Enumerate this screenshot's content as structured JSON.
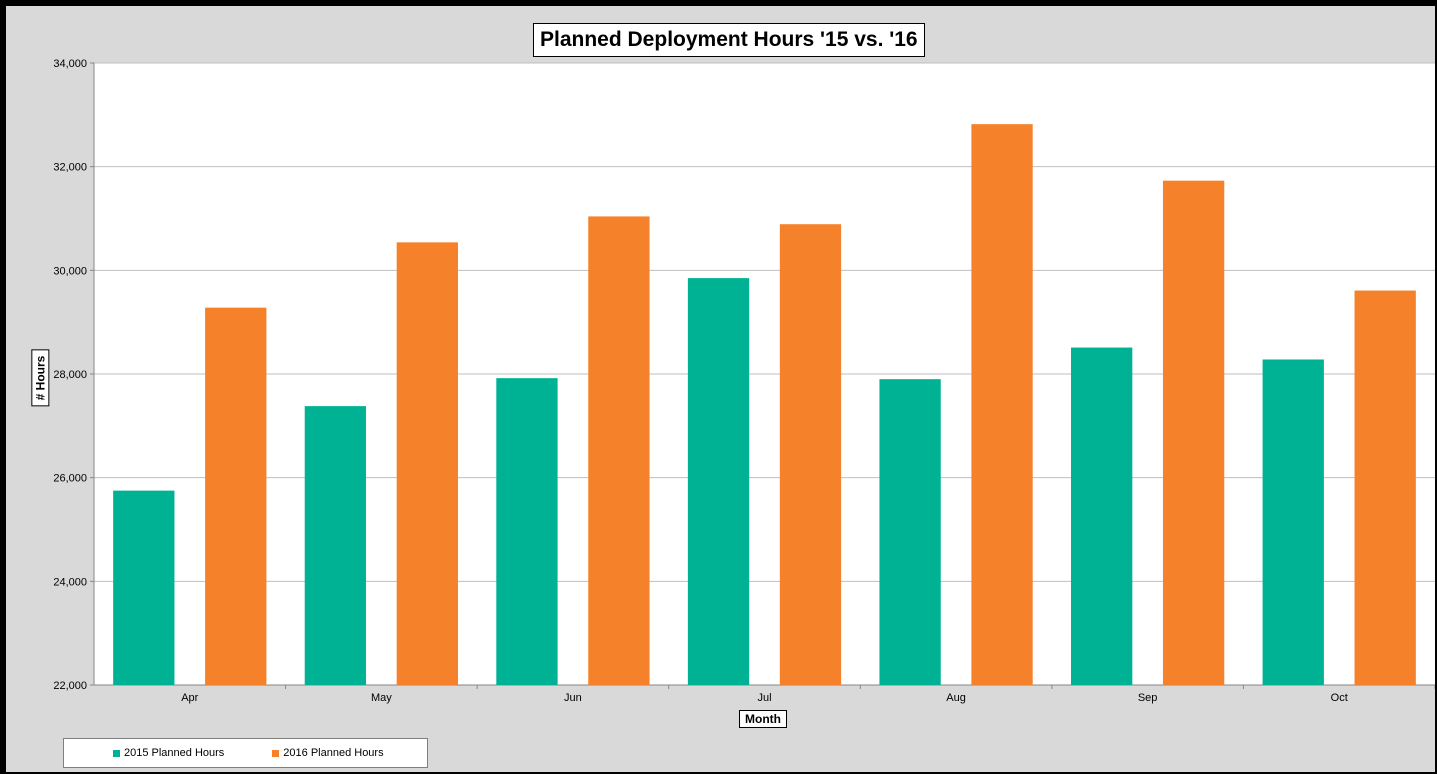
{
  "chart_data": {
    "type": "bar",
    "title": "Planned Deployment Hours '15 vs. '16",
    "xlabel": "Month",
    "ylabel": "# Hours",
    "categories": [
      "Apr",
      "May",
      "Jun",
      "Jul",
      "Aug",
      "Sep",
      "Oct"
    ],
    "series": [
      {
        "name": "2015 Planned Hours",
        "color": "#00b294",
        "values": [
          25750,
          27380,
          27920,
          29850,
          27900,
          28510,
          28280
        ]
      },
      {
        "name": "2016 Planned Hours",
        "color": "#f5822a",
        "values": [
          29280,
          30540,
          31040,
          30890,
          32820,
          31730,
          29610
        ]
      }
    ],
    "ylim": [
      22000,
      34000
    ],
    "yticks": [
      22000,
      24000,
      26000,
      28000,
      30000,
      32000,
      34000
    ],
    "ytick_labels": [
      "22,000",
      "24,000",
      "26,000",
      "28,000",
      "30,000",
      "32,000",
      "34,000"
    ],
    "grid": true,
    "legend_position": "bottom-left"
  }
}
